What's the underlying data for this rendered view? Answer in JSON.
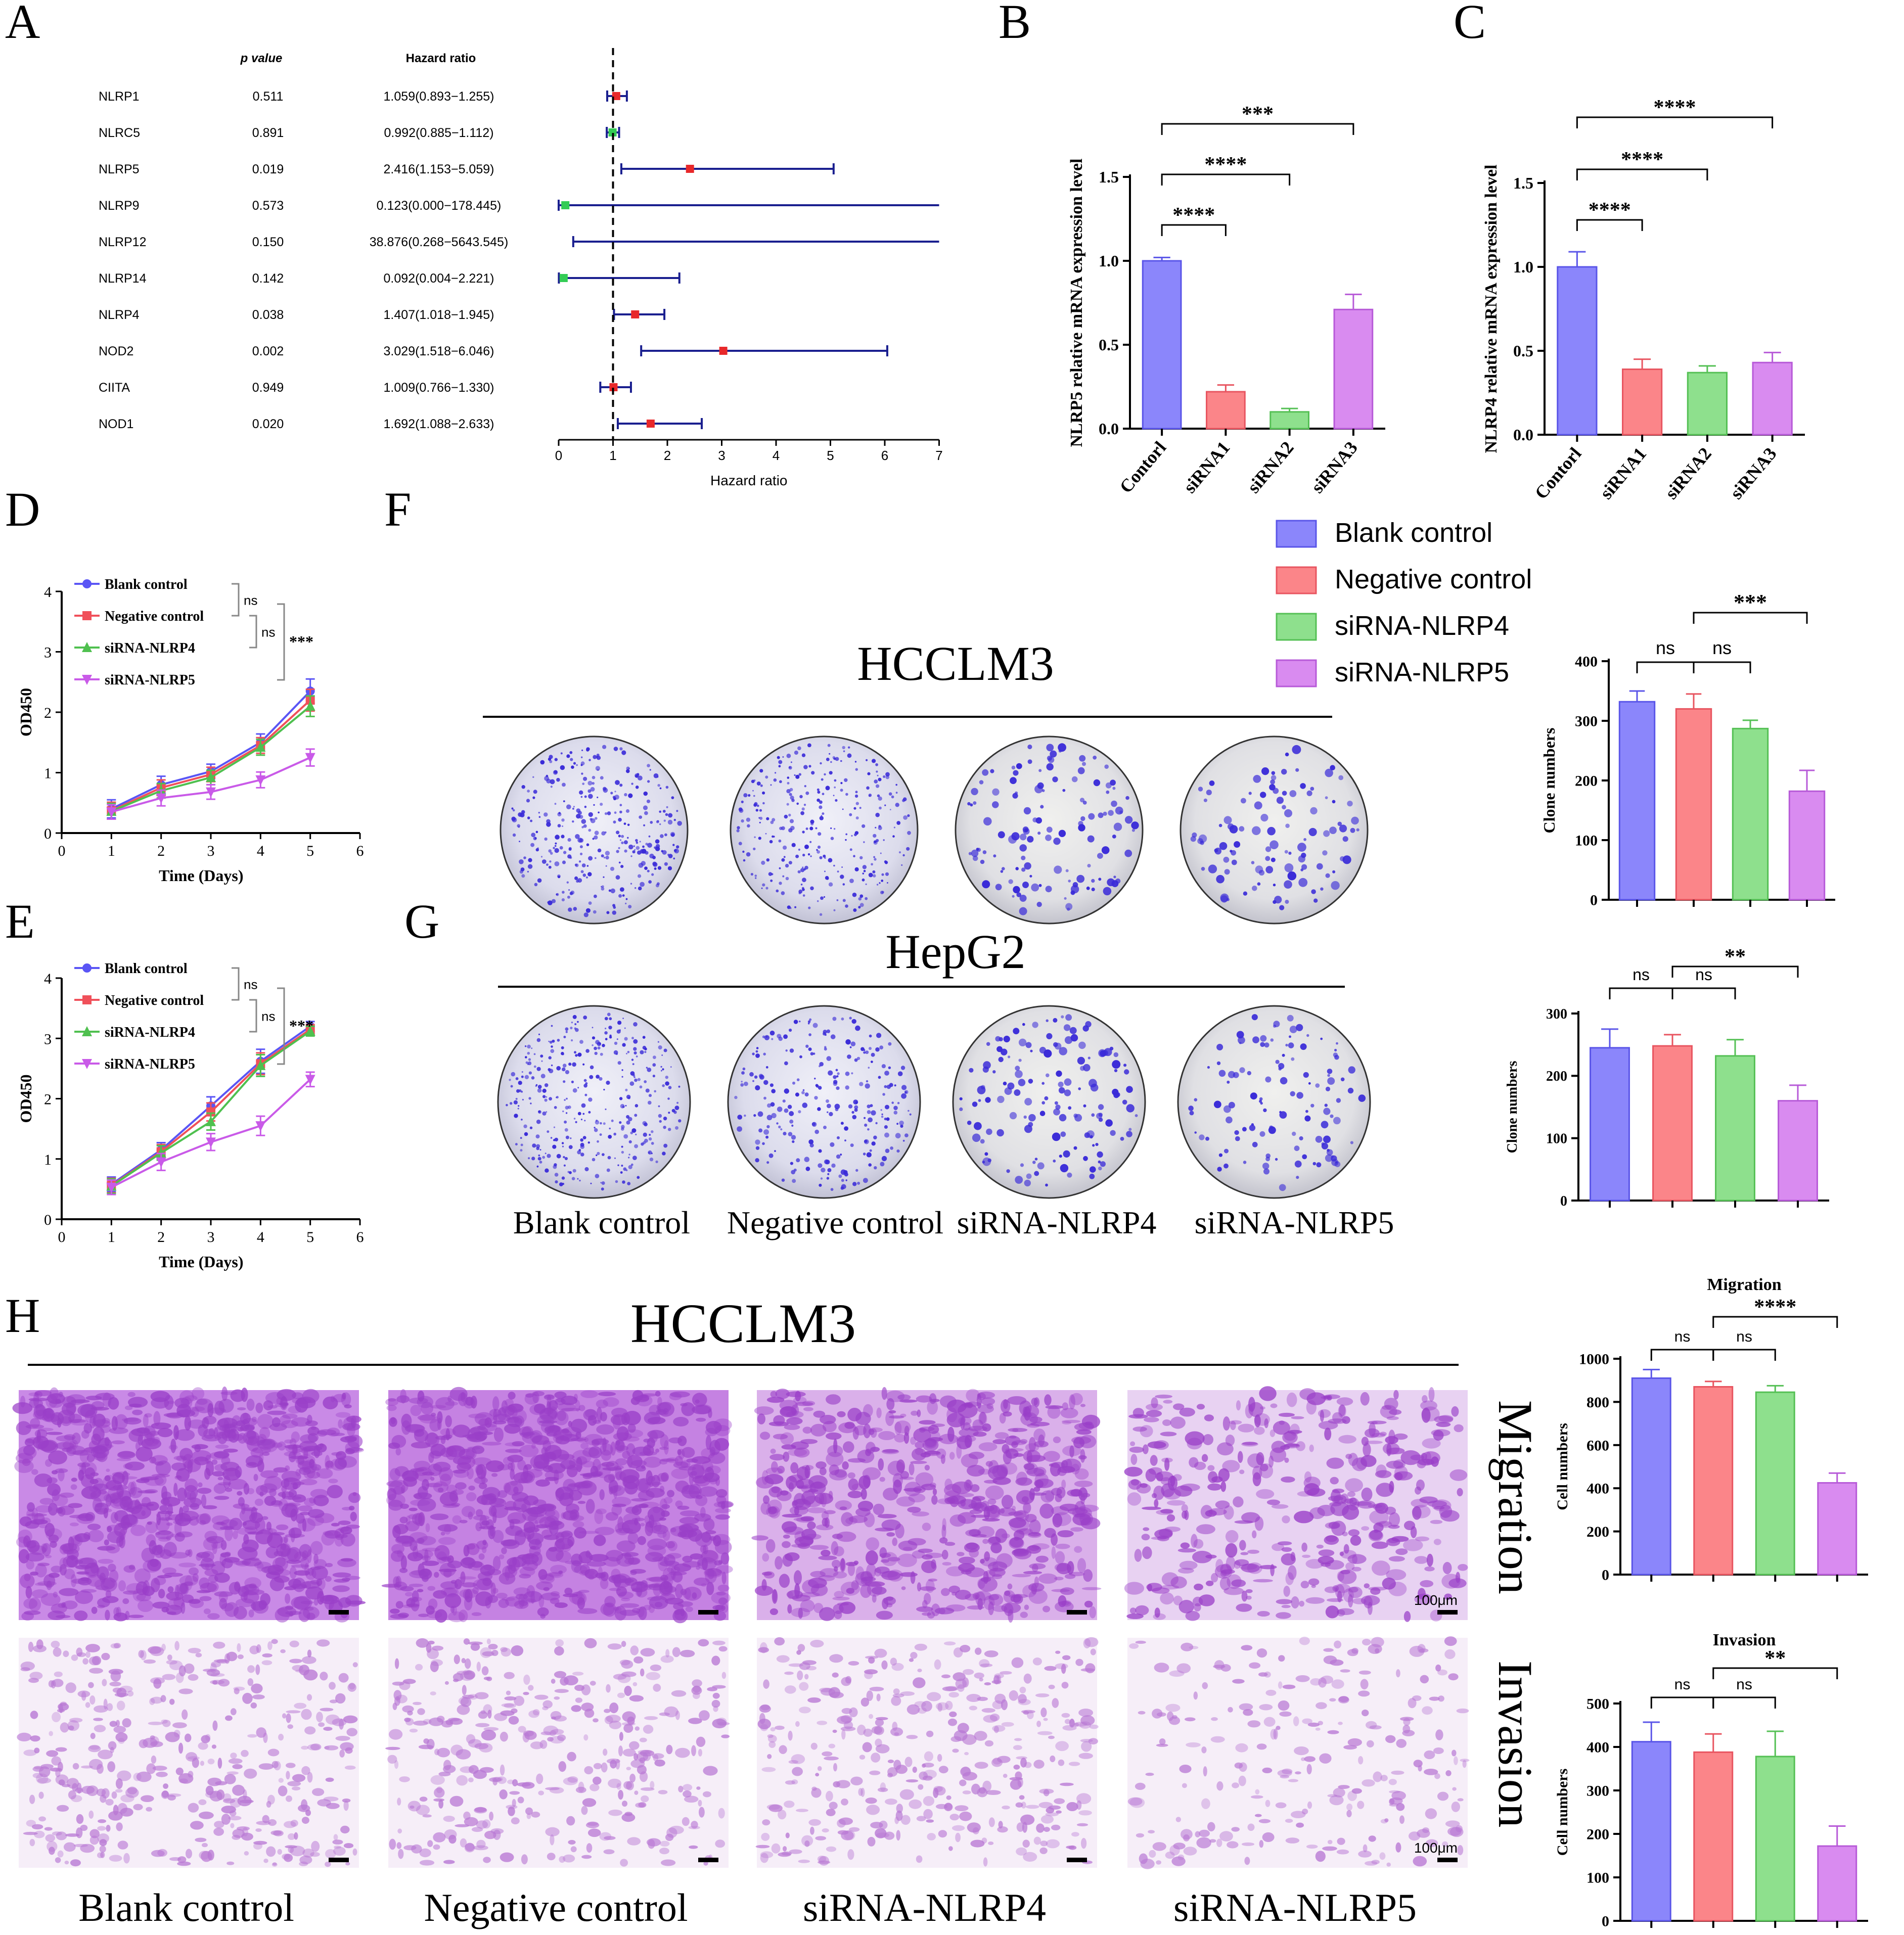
{
  "colors": {
    "blank": "#8b86fb",
    "negative": "#fb8589",
    "nlrp4": "#8ee08d",
    "nlrp5": "#d98bf0",
    "forest_line": "#1a1f8f",
    "forest_red": "#e8282a",
    "forest_green": "#33cc55",
    "colony_dot": "#3a2bd8",
    "transwell_stain": "#a45ad0"
  },
  "panels": {
    "A": "A",
    "B": "B",
    "C": "C",
    "D": "D",
    "E": "E",
    "F": "F",
    "G": "G",
    "H": "H"
  },
  "forest": {
    "header_p": "p value",
    "header_hr": "Hazard ratio",
    "xlabel": "Hazard ratio",
    "xticks": [
      "0",
      "1",
      "2",
      "3",
      "4",
      "5",
      "6",
      "7"
    ],
    "rows": [
      {
        "gene": "NLRP1",
        "p": "0.511",
        "hr_text": "1.059(0.893−1.255)",
        "hr": 1.059,
        "lo": 0.893,
        "hi": 1.255,
        "marker": "red"
      },
      {
        "gene": "NLRC5",
        "p": "0.891",
        "hr_text": "0.992(0.885−1.112)",
        "hr": 0.992,
        "lo": 0.885,
        "hi": 1.112,
        "marker": "green"
      },
      {
        "gene": "NLRP5",
        "p": "0.019",
        "hr_text": "2.416(1.153−5.059)",
        "hr": 2.416,
        "lo": 1.153,
        "hi": 5.059,
        "marker": "red"
      },
      {
        "gene": "NLRP9",
        "p": "0.573",
        "hr_text": "0.123(0.000−178.445)",
        "hr": 0.123,
        "lo": 0.0,
        "hi": 7.0,
        "marker": "green"
      },
      {
        "gene": "NLRP12",
        "p": "0.150",
        "hr_text": "38.876(0.268−5643.545)",
        "hr": null,
        "lo": 0.268,
        "hi": 7.0,
        "marker": "none"
      },
      {
        "gene": "NLRP14",
        "p": "0.142",
        "hr_text": "0.092(0.004−2.221)",
        "hr": 0.092,
        "lo": 0.004,
        "hi": 2.221,
        "marker": "green"
      },
      {
        "gene": "NLRP4",
        "p": "0.038",
        "hr_text": "1.407(1.018−1.945)",
        "hr": 1.407,
        "lo": 1.018,
        "hi": 1.945,
        "marker": "red"
      },
      {
        "gene": "NOD2",
        "p": "0.002",
        "hr_text": "3.029(1.518−6.046)",
        "hr": 3.029,
        "lo": 1.518,
        "hi": 6.046,
        "marker": "red"
      },
      {
        "gene": "CIITA",
        "p": "0.949",
        "hr_text": "1.009(0.766−1.330)",
        "hr": 1.009,
        "lo": 0.766,
        "hi": 1.33,
        "marker": "red"
      },
      {
        "gene": "NOD1",
        "p": "0.020",
        "hr_text": "1.692(1.088−2.633)",
        "hr": 1.692,
        "lo": 1.088,
        "hi": 2.633,
        "marker": "red"
      }
    ]
  },
  "chart_data": [
    {
      "id": "B",
      "type": "bar",
      "ylabel": "NLRP5 relative mRNA expression level",
      "categories": [
        "Contorl",
        "siRNA1",
        "siRNA2",
        "siRNA3"
      ],
      "values": [
        1.0,
        0.22,
        0.1,
        0.71
      ],
      "errors": [
        0.02,
        0.04,
        0.02,
        0.09
      ],
      "ylim": [
        0,
        1.5
      ],
      "yticks": [
        "0.0",
        "0.5",
        "1.0",
        "1.5"
      ],
      "sig": [
        {
          "from": 0,
          "to": 1,
          "label": "****"
        },
        {
          "from": 0,
          "to": 2,
          "label": "****"
        },
        {
          "from": 0,
          "to": 3,
          "label": "***"
        }
      ]
    },
    {
      "id": "C",
      "type": "bar",
      "ylabel": "NLRP4 relative mRNA expression level",
      "categories": [
        "Contorl",
        "siRNA1",
        "siRNA2",
        "siRNA3"
      ],
      "values": [
        1.0,
        0.39,
        0.37,
        0.43
      ],
      "errors": [
        0.09,
        0.06,
        0.04,
        0.06
      ],
      "ylim": [
        0,
        1.5
      ],
      "yticks": [
        "0.0",
        "0.5",
        "1.0",
        "1.5"
      ],
      "sig": [
        {
          "from": 0,
          "to": 1,
          "label": "****"
        },
        {
          "from": 0,
          "to": 2,
          "label": "****"
        },
        {
          "from": 0,
          "to": 3,
          "label": "****"
        }
      ]
    },
    {
      "id": "D",
      "type": "line",
      "xlabel": "Time (Days)",
      "ylabel": "OD450",
      "x": [
        1,
        2,
        3,
        4,
        5
      ],
      "xlim": [
        0,
        6
      ],
      "ylim": [
        0,
        4
      ],
      "xticks": [
        "0",
        "1",
        "2",
        "3",
        "4",
        "5",
        "6"
      ],
      "yticks": [
        "0",
        "1",
        "2",
        "3",
        "4"
      ],
      "series": [
        {
          "name": "Blank control",
          "values": [
            0.4,
            0.8,
            1.02,
            1.5,
            2.35
          ],
          "errors": [
            0.15,
            0.14,
            0.12,
            0.14,
            0.2
          ]
        },
        {
          "name": "Negative control",
          "values": [
            0.37,
            0.75,
            0.97,
            1.45,
            2.2
          ],
          "errors": [
            0.14,
            0.13,
            0.12,
            0.13,
            0.18
          ]
        },
        {
          "name": "siRNA-NLRP4",
          "values": [
            0.36,
            0.7,
            0.92,
            1.42,
            2.1
          ],
          "errors": [
            0.13,
            0.12,
            0.12,
            0.13,
            0.17
          ]
        },
        {
          "name": "siRNA-NLRP5",
          "values": [
            0.35,
            0.58,
            0.68,
            0.88,
            1.25
          ],
          "errors": [
            0.12,
            0.13,
            0.12,
            0.13,
            0.14
          ]
        }
      ],
      "sig": [
        "ns",
        "ns",
        "***"
      ]
    },
    {
      "id": "E",
      "type": "line",
      "xlabel": "Time (Days)",
      "ylabel": "OD450",
      "x": [
        1,
        2,
        3,
        4,
        5
      ],
      "xlim": [
        0,
        6
      ],
      "ylim": [
        0,
        4
      ],
      "xticks": [
        "0",
        "1",
        "2",
        "3",
        "4",
        "5",
        "6"
      ],
      "yticks": [
        "0",
        "1",
        "2",
        "3",
        "4"
      ],
      "series": [
        {
          "name": "Blank control",
          "values": [
            0.58,
            1.15,
            1.88,
            2.62,
            3.2
          ],
          "errors": [
            0.12,
            0.12,
            0.15,
            0.2,
            0.08
          ]
        },
        {
          "name": "Negative control",
          "values": [
            0.56,
            1.12,
            1.78,
            2.58,
            3.15
          ],
          "errors": [
            0.12,
            0.12,
            0.15,
            0.18,
            0.08
          ]
        },
        {
          "name": "siRNA-NLRP4",
          "values": [
            0.55,
            1.1,
            1.62,
            2.55,
            3.12
          ],
          "errors": [
            0.12,
            0.12,
            0.14,
            0.18,
            0.08
          ]
        },
        {
          "name": "siRNA-NLRP5",
          "values": [
            0.53,
            0.95,
            1.28,
            1.55,
            2.32
          ],
          "errors": [
            0.12,
            0.14,
            0.14,
            0.16,
            0.12
          ]
        }
      ],
      "sig": [
        "ns",
        "ns",
        "***"
      ]
    },
    {
      "id": "F-chart",
      "type": "bar",
      "ylabel": "Clone numbers",
      "categories": [
        "Blank control",
        "Negative control",
        "siRNA-NLRP4",
        "siRNA-NLRP5"
      ],
      "values": [
        332,
        320,
        287,
        182
      ],
      "errors": [
        18,
        25,
        14,
        35
      ],
      "ylim": [
        0,
        400
      ],
      "yticks": [
        "0",
        "100",
        "200",
        "300",
        "400"
      ],
      "sig": [
        {
          "from": 0,
          "to": 1,
          "label": "ns"
        },
        {
          "from": 1,
          "to": 2,
          "label": "ns"
        },
        {
          "from": 1,
          "to": 3,
          "label": "***"
        }
      ]
    },
    {
      "id": "G-chart",
      "type": "bar",
      "ylabel": "Clone numbers",
      "categories": [
        "Blank control",
        "Negative control",
        "siRNA-NLRP4",
        "siRNA-NLRP5"
      ],
      "values": [
        245,
        248,
        232,
        160
      ],
      "errors": [
        30,
        18,
        26,
        25
      ],
      "ylim": [
        0,
        300
      ],
      "yticks": [
        "0",
        "100",
        "200",
        "300"
      ],
      "sig": [
        {
          "from": 0,
          "to": 1,
          "label": "ns"
        },
        {
          "from": 1,
          "to": 2,
          "label": "ns"
        },
        {
          "from": 1,
          "to": 3,
          "label": "**"
        }
      ]
    },
    {
      "id": "H-migration",
      "type": "bar",
      "title": "Migration",
      "ylabel": "Cell numbers",
      "categories": [
        "Blank control",
        "Negative control",
        "siRNA-NLRP4",
        "siRNA-NLRP5"
      ],
      "values": [
        910,
        870,
        845,
        425
      ],
      "errors": [
        40,
        25,
        30,
        45
      ],
      "ylim": [
        0,
        1000
      ],
      "yticks": [
        "0",
        "200",
        "400",
        "600",
        "800",
        "1000"
      ],
      "sig": [
        {
          "from": 0,
          "to": 1,
          "label": "ns"
        },
        {
          "from": 1,
          "to": 2,
          "label": "ns"
        },
        {
          "from": 1,
          "to": 3,
          "label": "****"
        }
      ]
    },
    {
      "id": "H-invasion",
      "type": "bar",
      "title": "Invasion",
      "ylabel": "Cell numbers",
      "categories": [
        "Blank control",
        "Negative control",
        "siRNA-NLRP4",
        "siRNA-NLRP5"
      ],
      "values": [
        412,
        388,
        378,
        172
      ],
      "errors": [
        45,
        42,
        58,
        46
      ],
      "ylim": [
        0,
        500
      ],
      "yticks": [
        "0",
        "100",
        "200",
        "300",
        "400",
        "500"
      ],
      "sig": [
        {
          "from": 0,
          "to": 1,
          "label": "ns"
        },
        {
          "from": 1,
          "to": 2,
          "label": "ns"
        },
        {
          "from": 1,
          "to": 3,
          "label": "**"
        }
      ]
    }
  ],
  "legend_F": [
    "Blank control",
    "Negative control",
    "siRNA-NLRP4",
    "siRNA-NLRP5"
  ],
  "colony": {
    "hcclm3_title": "HCCLM3",
    "hepg2_title": "HepG2",
    "labels": [
      "Blank control",
      "Negative control",
      "siRNA-NLRP4",
      "siRNA-NLRP5"
    ]
  },
  "transwell": {
    "title": "HCCLM3",
    "row_labels": [
      "Migration",
      "Invasion"
    ],
    "scale_bar": "100μm",
    "labels": [
      "Blank control",
      "Negative control",
      "siRNA-NLRP4",
      "siRNA-NLRP5"
    ]
  }
}
